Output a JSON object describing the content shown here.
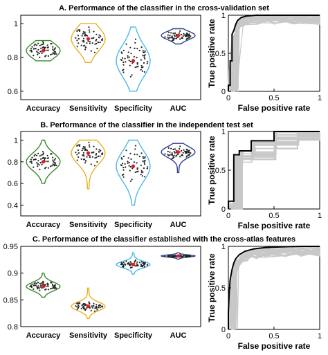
{
  "chart_data": [
    {
      "type": "violin",
      "title": "A. Performance of the classifier in the cross-validation set",
      "categories": [
        "Accuracy",
        "Sensitivity",
        "Specificity",
        "AUC"
      ],
      "colors": [
        "#3a8a2a",
        "#e8b020",
        "#4ab8e8",
        "#2c3e8c"
      ],
      "means": [
        0.84,
        0.91,
        0.78,
        0.93
      ],
      "spreads": [
        0.045,
        0.07,
        0.095,
        0.025
      ],
      "ranges": [
        [
          0.78,
          0.9
        ],
        [
          0.77,
          1.0
        ],
        [
          0.6,
          0.98
        ],
        [
          0.88,
          0.97
        ]
      ],
      "ylim": [
        0.55,
        1.05
      ],
      "yticks": [
        "0.6",
        "0.8",
        "1"
      ],
      "ytick_values": [
        0.6,
        0.8,
        1.0
      ]
    },
    {
      "type": "line",
      "subtype": "roc",
      "xlabel": "False positive rate",
      "ylabel": "True positive rate",
      "xticks": [
        "0",
        "0.5",
        "1"
      ],
      "yticks": [
        "0",
        "0.5",
        "1"
      ],
      "xlim": [
        0,
        1
      ],
      "ylim": [
        0,
        1
      ],
      "curve_style": "smooth",
      "series": [
        {
          "x": [
            0,
            0,
            0.02,
            0.02,
            0.04,
            0.04,
            0.06,
            0.08,
            0.1,
            0.14,
            0.2,
            0.3,
            0.5,
            0.7,
            1.0
          ],
          "y": [
            0,
            0.08,
            0.08,
            0.4,
            0.4,
            0.75,
            0.8,
            0.88,
            0.93,
            0.97,
            0.99,
            1.0,
            1.0,
            1.0,
            1.0
          ]
        }
      ]
    },
    {
      "type": "violin",
      "title": "B. Performance of the classifier in the independent test set",
      "categories": [
        "Accuracy",
        "Sensitivity",
        "Specificity",
        "AUC"
      ],
      "colors": [
        "#3a8a2a",
        "#e8b020",
        "#4ab8e8",
        "#2c3e8c"
      ],
      "means": [
        0.8,
        0.88,
        0.76,
        0.89
      ],
      "spreads": [
        0.08,
        0.1,
        0.14,
        0.05
      ],
      "ranges": [
        [
          0.6,
          1.0
        ],
        [
          0.55,
          1.0
        ],
        [
          0.4,
          1.0
        ],
        [
          0.7,
          0.97
        ]
      ],
      "ylim": [
        0.3,
        1.08
      ],
      "yticks": [
        "0.4",
        "0.6",
        "0.8",
        "1"
      ],
      "ytick_values": [
        0.4,
        0.6,
        0.8,
        1.0
      ]
    },
    {
      "type": "line",
      "subtype": "roc",
      "xlabel": "False positive rate",
      "ylabel": "True positive rate",
      "xticks": [
        "0",
        "0.5",
        "1"
      ],
      "yticks": [
        "0",
        "0.5",
        "1"
      ],
      "xlim": [
        0,
        1
      ],
      "ylim": [
        0,
        1
      ],
      "curve_style": "step",
      "series": [
        {
          "x": [
            0,
            0,
            0.06,
            0.06,
            0.12,
            0.12,
            0.25,
            0.25,
            0.5,
            0.5,
            0.75,
            0.75,
            1.0
          ],
          "y": [
            0,
            0.1,
            0.1,
            0.7,
            0.7,
            0.75,
            0.75,
            0.88,
            0.88,
            1.0,
            1.0,
            1.0,
            1.0
          ]
        }
      ]
    },
    {
      "type": "violin",
      "title": "C. Performance of the classifier established with the cross-atlas features",
      "categories": [
        "Accuracy",
        "Sensitivity",
        "Specificity",
        "AUC"
      ],
      "colors": [
        "#3a8a2a",
        "#e8b020",
        "#4ab8e8",
        "#2c3e8c"
      ],
      "means": [
        0.875,
        0.838,
        0.916,
        0.932
      ],
      "spreads": [
        0.008,
        0.008,
        0.006,
        0.002
      ],
      "ranges": [
        [
          0.855,
          0.9
        ],
        [
          0.815,
          0.872
        ],
        [
          0.898,
          0.938
        ],
        [
          0.926,
          0.938
        ]
      ],
      "ylim": [
        0.8,
        0.95
      ],
      "yticks": [
        "0.8",
        "0.85",
        "0.9",
        "0.95"
      ],
      "ytick_values": [
        0.8,
        0.85,
        0.9,
        0.95
      ]
    },
    {
      "type": "line",
      "subtype": "roc",
      "xlabel": "False positive rate",
      "ylabel": "True positive rate",
      "xticks": [
        "0",
        "0.5",
        "1"
      ],
      "yticks": [
        "0",
        "0.5",
        "1"
      ],
      "xlim": [
        0,
        1
      ],
      "ylim": [
        0,
        1
      ],
      "curve_style": "smooth",
      "series": [
        {
          "x": [
            0,
            0,
            0.01,
            0.02,
            0.04,
            0.06,
            0.08,
            0.12,
            0.18,
            0.28,
            0.4,
            0.6,
            0.8,
            1.0
          ],
          "y": [
            0,
            0.2,
            0.45,
            0.6,
            0.72,
            0.8,
            0.85,
            0.9,
            0.94,
            0.97,
            0.985,
            0.995,
            1.0,
            1.0
          ]
        }
      ]
    }
  ]
}
